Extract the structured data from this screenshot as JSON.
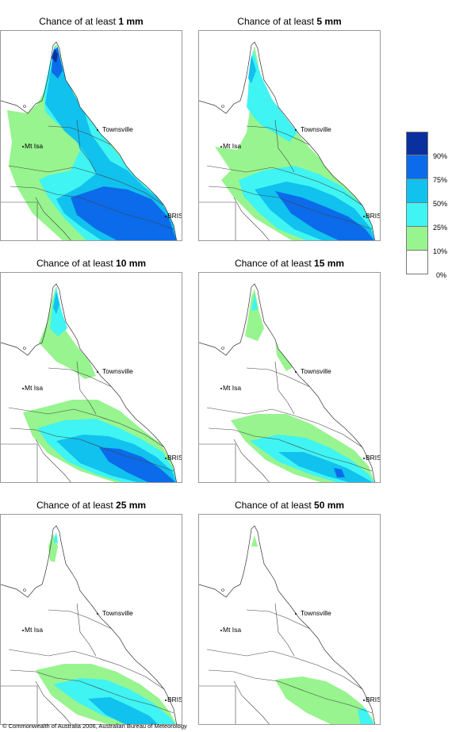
{
  "title_prefix": "Chance of at least",
  "panels": [
    {
      "amount": "1 mm"
    },
    {
      "amount": "5 mm"
    },
    {
      "amount": "10 mm"
    },
    {
      "amount": "15 mm"
    },
    {
      "amount": "25 mm"
    },
    {
      "amount": "50 mm"
    }
  ],
  "places": {
    "townsville": "Townsville",
    "mt_isa": "Mt Isa",
    "bris": "BRIS"
  },
  "legend": {
    "labels": [
      "90%",
      "75%",
      "50%",
      "25%",
      "10%",
      "0%"
    ],
    "colors": [
      "#0a2f9e",
      "#0b6bea",
      "#11c1ee",
      "#3ff4f2",
      "#97f48e",
      "#ffffff"
    ]
  },
  "copyright": "© Commonwealth of Australia 2006, Australian Bureau of Meteorology"
}
